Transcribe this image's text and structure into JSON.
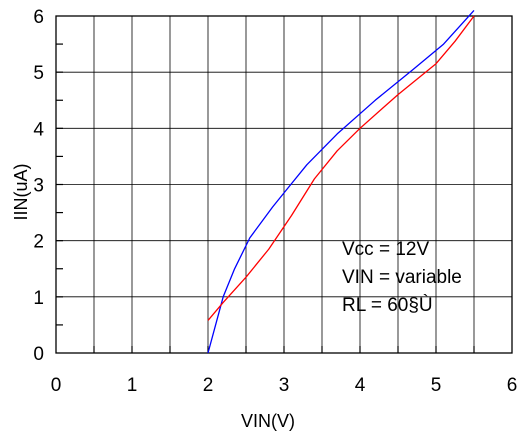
{
  "chart_data": {
    "type": "line",
    "xlabel": "VIN(V)",
    "ylabel": "IIN(uA)",
    "xlim": [
      0,
      6
    ],
    "ylim": [
      0,
      6
    ],
    "xticks": [
      "0",
      "1",
      "2",
      "3",
      "4",
      "5",
      "6"
    ],
    "yticks": [
      "0",
      "1",
      "2",
      "3",
      "4",
      "5",
      "6"
    ],
    "grid": true,
    "annotations": [
      "Vcc  =  12V",
      "VIN  =  variable",
      "RL    =  60§Ù"
    ],
    "series": [
      {
        "color": "#0000ff",
        "x": [
          2.0,
          2.1,
          2.2,
          2.35,
          2.55,
          2.85,
          3.0,
          3.3,
          3.7,
          4.2,
          4.7,
          5.1,
          5.5
        ],
        "y": [
          0.0,
          0.5,
          1.0,
          1.5,
          2.05,
          2.6,
          2.85,
          3.35,
          3.9,
          4.5,
          5.05,
          5.5,
          6.1
        ]
      },
      {
        "color": "#ff0000",
        "x": [
          2.0,
          2.2,
          2.5,
          2.8,
          3.1,
          3.4,
          3.7,
          4.0,
          4.5,
          5.0,
          5.25,
          5.5
        ],
        "y": [
          0.58,
          0.9,
          1.35,
          1.85,
          2.45,
          3.1,
          3.6,
          4.0,
          4.6,
          5.15,
          5.55,
          6.0
        ]
      }
    ]
  }
}
